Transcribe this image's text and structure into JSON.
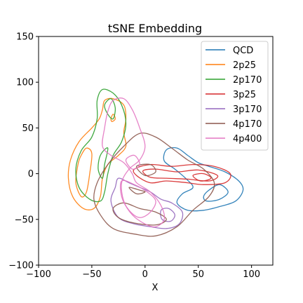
{
  "chart_data": {
    "type": "line",
    "title": "tSNE Embedding",
    "xlabel": "X",
    "ylabel": "",
    "xlim": [
      -100,
      120
    ],
    "ylim": [
      -100,
      150
    ],
    "xticks": [
      -100,
      -50,
      0,
      50,
      100
    ],
    "yticks": [
      -100,
      -50,
      0,
      50,
      100,
      150
    ],
    "grid": false,
    "legend_position": "top-right",
    "description_of_marks": "density contour outlines per class",
    "series": [
      {
        "name": "QCD",
        "color": "#1f77b4",
        "contours": [
          [
            [
              20,
              26
            ],
            [
              30,
              28
            ],
            [
              40,
              20
            ],
            [
              50,
              12
            ],
            [
              60,
              8
            ],
            [
              75,
              2
            ],
            [
              88,
              -8
            ],
            [
              92,
              -18
            ],
            [
              85,
              -30
            ],
            [
              70,
              -36
            ],
            [
              55,
              -40
            ],
            [
              40,
              -40
            ],
            [
              30,
              -32
            ],
            [
              35,
              -22
            ],
            [
              45,
              -15
            ],
            [
              38,
              -5
            ],
            [
              28,
              5
            ],
            [
              18,
              14
            ],
            [
              20,
              26
            ]
          ],
          [
            [
              58,
              -30
            ],
            [
              70,
              -28
            ],
            [
              78,
              -20
            ],
            [
              70,
              -12
            ],
            [
              60,
              -18
            ],
            [
              55,
              -25
            ],
            [
              58,
              -30
            ]
          ]
        ]
      },
      {
        "name": "2p25",
        "color": "#ff7f0e",
        "contours": [
          [
            [
              -40,
              70
            ],
            [
              -38,
              80
            ],
            [
              -30,
              82
            ],
            [
              -20,
              75
            ],
            [
              -18,
              60
            ],
            [
              -20,
              45
            ],
            [
              -18,
              30
            ],
            [
              -25,
              20
            ],
            [
              -35,
              10
            ],
            [
              -40,
              -5
            ],
            [
              -42,
              -25
            ],
            [
              -48,
              -38
            ],
            [
              -58,
              -38
            ],
            [
              -68,
              -25
            ],
            [
              -72,
              -5
            ],
            [
              -70,
              15
            ],
            [
              -62,
              35
            ],
            [
              -50,
              50
            ],
            [
              -43,
              60
            ],
            [
              -40,
              70
            ]
          ],
          [
            [
              -60,
              20
            ],
            [
              -55,
              28
            ],
            [
              -50,
              22
            ],
            [
              -52,
              0
            ],
            [
              -55,
              -20
            ],
            [
              -60,
              -25
            ],
            [
              -65,
              -10
            ],
            [
              -63,
              10
            ],
            [
              -60,
              20
            ]
          ],
          [
            [
              -32,
              60
            ],
            [
              -30,
              65
            ],
            [
              -28,
              60
            ],
            [
              -31,
              57
            ],
            [
              -32,
              60
            ]
          ]
        ]
      },
      {
        "name": "2p170",
        "color": "#2ca02c",
        "contours": [
          [
            [
              -45,
              80
            ],
            [
              -40,
              92
            ],
            [
              -30,
              88
            ],
            [
              -22,
              75
            ],
            [
              -18,
              55
            ],
            [
              -22,
              35
            ],
            [
              -30,
              20
            ],
            [
              -35,
              0
            ],
            [
              -38,
              -20
            ],
            [
              -42,
              -30
            ],
            [
              -52,
              -28
            ],
            [
              -62,
              -15
            ],
            [
              -65,
              5
            ],
            [
              -60,
              25
            ],
            [
              -50,
              40
            ],
            [
              -45,
              60
            ],
            [
              -45,
              80
            ]
          ],
          [
            [
              -38,
              75
            ],
            [
              -32,
              82
            ],
            [
              -28,
              72
            ],
            [
              -30,
              60
            ],
            [
              -35,
              65
            ],
            [
              -38,
              75
            ]
          ],
          [
            [
              -42,
              20
            ],
            [
              -35,
              28
            ],
            [
              -38,
              10
            ],
            [
              -40,
              -5
            ],
            [
              -44,
              5
            ],
            [
              -42,
              20
            ]
          ]
        ]
      },
      {
        "name": "3p25",
        "color": "#d62728",
        "contours": [
          [
            [
              -10,
              5
            ],
            [
              5,
              10
            ],
            [
              25,
              8
            ],
            [
              45,
              10
            ],
            [
              65,
              8
            ],
            [
              80,
              0
            ],
            [
              75,
              -10
            ],
            [
              55,
              -12
            ],
            [
              40,
              -10
            ],
            [
              20,
              -8
            ],
            [
              5,
              -10
            ],
            [
              -8,
              -2
            ],
            [
              -10,
              5
            ]
          ],
          [
            [
              -2,
              3
            ],
            [
              10,
              5
            ],
            [
              30,
              2
            ],
            [
              50,
              4
            ],
            [
              68,
              -2
            ],
            [
              60,
              -8
            ],
            [
              40,
              -6
            ],
            [
              20,
              -5
            ],
            [
              5,
              -4
            ],
            [
              -2,
              3
            ]
          ],
          [
            [
              45,
              -2
            ],
            [
              55,
              0
            ],
            [
              62,
              -5
            ],
            [
              52,
              -8
            ],
            [
              45,
              -2
            ]
          ]
        ]
      },
      {
        "name": "3p170",
        "color": "#9467bd",
        "contours": [
          [
            [
              -25,
              -5
            ],
            [
              -15,
              -10
            ],
            [
              -5,
              -15
            ],
            [
              5,
              -20
            ],
            [
              15,
              -28
            ],
            [
              25,
              -32
            ],
            [
              35,
              -42
            ],
            [
              32,
              -55
            ],
            [
              20,
              -60
            ],
            [
              5,
              -58
            ],
            [
              -10,
              -55
            ],
            [
              -25,
              -48
            ],
            [
              -32,
              -30
            ],
            [
              -28,
              -15
            ],
            [
              -25,
              -5
            ]
          ],
          [
            [
              15,
              -40
            ],
            [
              22,
              -38
            ],
            [
              28,
              -45
            ],
            [
              24,
              -52
            ],
            [
              16,
              -50
            ],
            [
              15,
              -40
            ]
          ]
        ]
      },
      {
        "name": "4p170",
        "color": "#8c564b",
        "contours": [
          [
            [
              -45,
              -10
            ],
            [
              -35,
              10
            ],
            [
              -20,
              30
            ],
            [
              -5,
              44
            ],
            [
              10,
              40
            ],
            [
              25,
              28
            ],
            [
              40,
              15
            ],
            [
              55,
              5
            ],
            [
              65,
              -10
            ],
            [
              60,
              -25
            ],
            [
              45,
              -40
            ],
            [
              30,
              -58
            ],
            [
              10,
              -68
            ],
            [
              -10,
              -66
            ],
            [
              -30,
              -60
            ],
            [
              -42,
              -45
            ],
            [
              -48,
              -28
            ],
            [
              -45,
              -10
            ]
          ],
          [
            [
              -30,
              -38
            ],
            [
              -20,
              -32
            ],
            [
              -5,
              -38
            ],
            [
              10,
              -42
            ],
            [
              20,
              -50
            ],
            [
              10,
              -56
            ],
            [
              -10,
              -54
            ],
            [
              -25,
              -48
            ],
            [
              -30,
              -38
            ]
          ],
          [
            [
              -15,
              -15
            ],
            [
              -5,
              -18
            ],
            [
              0,
              -20
            ],
            [
              -8,
              -22
            ],
            [
              -15,
              -15
            ]
          ],
          [
            [
              -8,
              8
            ],
            [
              5,
              10
            ],
            [
              10,
              2
            ],
            [
              0,
              -2
            ],
            [
              -8,
              8
            ]
          ]
        ]
      },
      {
        "name": "4p400",
        "color": "#e377c2",
        "contours": [
          [
            [
              -30,
              80
            ],
            [
              -20,
              82
            ],
            [
              -12,
              70
            ],
            [
              -5,
              50
            ],
            [
              0,
              30
            ],
            [
              -5,
              15
            ],
            [
              -15,
              5
            ],
            [
              -22,
              -10
            ],
            [
              -20,
              -30
            ],
            [
              -12,
              -45
            ],
            [
              0,
              -55
            ],
            [
              10,
              -58
            ],
            [
              18,
              -50
            ],
            [
              15,
              -35
            ],
            [
              5,
              -20
            ],
            [
              -8,
              -10
            ],
            [
              -12,
              0
            ],
            [
              -20,
              12
            ],
            [
              -32,
              20
            ],
            [
              -40,
              30
            ],
            [
              -38,
              50
            ],
            [
              -35,
              68
            ],
            [
              -30,
              80
            ]
          ],
          [
            [
              -22,
              -8
            ],
            [
              -10,
              -12
            ],
            [
              2,
              -20
            ],
            [
              10,
              -30
            ],
            [
              5,
              -42
            ],
            [
              -5,
              -48
            ],
            [
              -15,
              -40
            ],
            [
              -22,
              -25
            ],
            [
              -22,
              -8
            ]
          ],
          [
            [
              -18,
              15
            ],
            [
              -10,
              20
            ],
            [
              -5,
              10
            ],
            [
              -12,
              5
            ],
            [
              -18,
              15
            ]
          ]
        ]
      }
    ]
  }
}
